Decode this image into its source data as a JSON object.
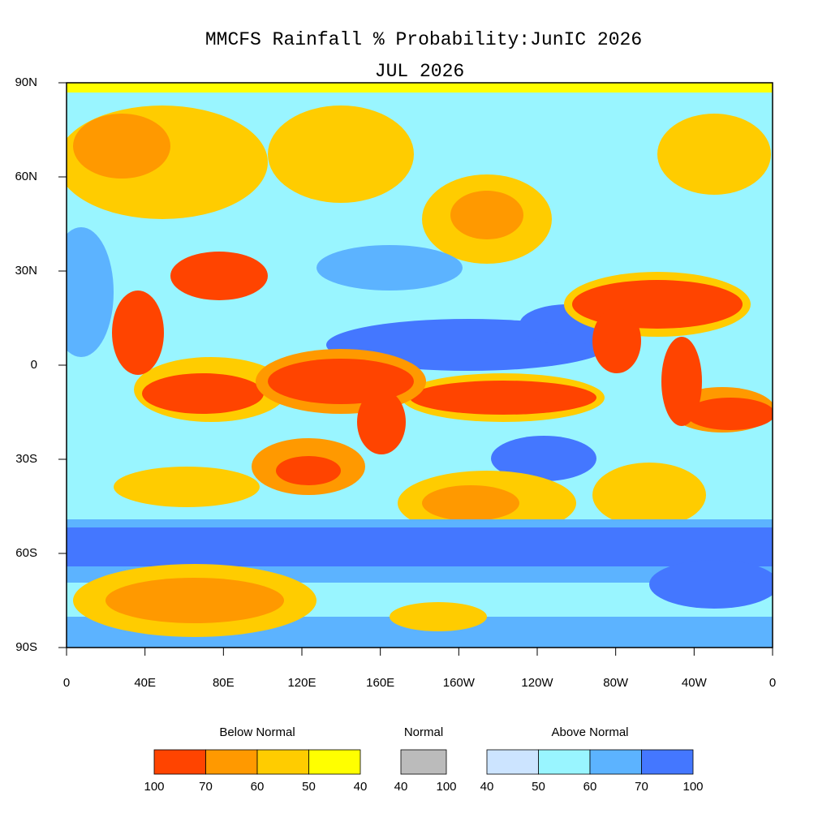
{
  "title": "MMCFS Rainfall % Probability:JunIC 2026",
  "subtitle": "JUL 2026",
  "map": {
    "latlim": [
      -90,
      90
    ],
    "lonlim": [
      0,
      360
    ],
    "lat_ticks": [
      {
        "value": 90,
        "label": "90N"
      },
      {
        "value": 60,
        "label": "60N"
      },
      {
        "value": 30,
        "label": "30N"
      },
      0,
      {
        "value": -30,
        "label": "30S"
      },
      {
        "value": -60,
        "label": "60S"
      },
      {
        "value": -90,
        "label": "90S"
      }
    ],
    "lon_ticks": [
      0,
      {
        "value": 40,
        "label": "40E"
      },
      {
        "value": 80,
        "label": "80E"
      },
      {
        "value": 120,
        "label": "120E"
      },
      {
        "value": 160,
        "label": "160E"
      },
      {
        "value": 200,
        "label": "160W"
      },
      {
        "value": 240,
        "label": "120W"
      },
      {
        "value": 280,
        "label": "80W"
      },
      {
        "value": 320,
        "label": "40W"
      },
      {
        "value": 360,
        "label": "0"
      }
    ]
  },
  "legend": [
    {
      "name": "Below Normal",
      "colors": [
        "#ff4400",
        "#ff9900",
        "#ffcc00",
        "#ffff00"
      ],
      "bounds": [
        100,
        70,
        60,
        50,
        40
      ]
    },
    {
      "name": "Normal",
      "colors": [
        "#bbbbbb"
      ],
      "bounds": [
        40,
        100
      ]
    },
    {
      "name": "Above Normal",
      "colors": [
        "#cce4ff",
        "#99f5ff",
        "#5cb3ff",
        "#4477ff"
      ],
      "bounds": [
        40,
        50,
        60,
        70,
        100
      ]
    }
  ]
}
